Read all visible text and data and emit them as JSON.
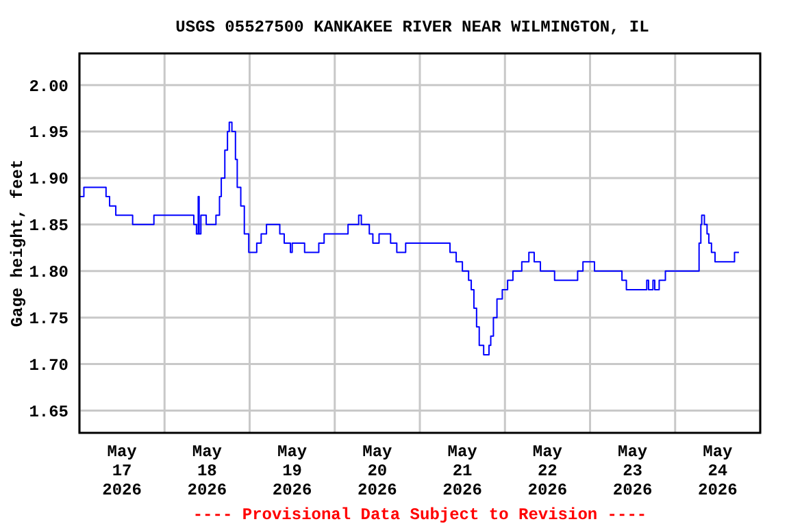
{
  "chart_data": {
    "type": "step",
    "title": "USGS 05527500 KANKAKEE RIVER NEAR WILMINGTON, IL",
    "ylabel": "Gage height, feet",
    "annotations": [
      "---- Provisional Data Subject to Revision ----"
    ],
    "xlim": [
      "2026-05-17T00:00",
      "2026-05-25T00:00"
    ],
    "xticks": [
      {
        "value": "2026-05-17T00:00",
        "label": null
      },
      {
        "value": "2026-05-17T12:00",
        "label": "May\n17\n2026"
      },
      {
        "value": "2026-05-18T00:00",
        "label": null
      },
      {
        "value": "2026-05-18T12:00",
        "label": "May\n18\n2026"
      },
      {
        "value": "2026-05-19T00:00",
        "label": null
      },
      {
        "value": "2026-05-19T12:00",
        "label": "May\n19\n2026"
      },
      {
        "value": "2026-05-20T00:00",
        "label": null
      },
      {
        "value": "2026-05-20T12:00",
        "label": "May\n20\n2026"
      },
      {
        "value": "2026-05-21T00:00",
        "label": null
      },
      {
        "value": "2026-05-21T12:00",
        "label": "May\n21\n2026"
      },
      {
        "value": "2026-05-22T00:00",
        "label": null
      },
      {
        "value": "2026-05-22T12:00",
        "label": "May\n22\n2026"
      },
      {
        "value": "2026-05-23T00:00",
        "label": null
      },
      {
        "value": "2026-05-23T12:00",
        "label": "May\n23\n2026"
      },
      {
        "value": "2026-05-24T00:00",
        "label": null
      },
      {
        "value": "2026-05-24T12:00",
        "label": "May\n24\n2026"
      },
      {
        "value": "2026-05-25T00:00",
        "label": null
      }
    ],
    "ylim": [
      1.626,
      2.034
    ],
    "yticks": [
      {
        "value": 1.65,
        "label": "1.65"
      },
      {
        "value": 1.7,
        "label": "1.70"
      },
      {
        "value": 1.75,
        "label": "1.75"
      },
      {
        "value": 1.8,
        "label": "1.80"
      },
      {
        "value": 1.85,
        "label": "1.85"
      },
      {
        "value": 1.9,
        "label": "1.90"
      },
      {
        "value": 1.95,
        "label": "1.95"
      },
      {
        "value": 2.0,
        "label": "2.00"
      }
    ],
    "grid": true,
    "marker": "none",
    "line_style": "solid",
    "series": [
      {
        "color": "#0000ff",
        "x": [
          "2026-05-17T00:00",
          "2026-05-17T01:15",
          "2026-05-17T07:30",
          "2026-05-17T08:30",
          "2026-05-17T10:15",
          "2026-05-17T15:00",
          "2026-05-17T21:00",
          "2026-05-18T08:15",
          "2026-05-18T09:00",
          "2026-05-18T09:30",
          "2026-05-18T09:45",
          "2026-05-18T10:15",
          "2026-05-18T11:45",
          "2026-05-18T14:30",
          "2026-05-18T15:30",
          "2026-05-18T16:00",
          "2026-05-18T17:00",
          "2026-05-18T17:45",
          "2026-05-18T18:15",
          "2026-05-18T19:00",
          "2026-05-18T20:00",
          "2026-05-18T20:30",
          "2026-05-18T21:30",
          "2026-05-18T22:30",
          "2026-05-18T23:45",
          "2026-05-19T02:00",
          "2026-05-19T03:15",
          "2026-05-19T04:45",
          "2026-05-19T08:30",
          "2026-05-19T09:45",
          "2026-05-19T11:30",
          "2026-05-19T12:00",
          "2026-05-19T15:30",
          "2026-05-19T19:30",
          "2026-05-19T21:00",
          "2026-05-20T03:45",
          "2026-05-20T06:45",
          "2026-05-20T07:30",
          "2026-05-20T09:45",
          "2026-05-20T10:45",
          "2026-05-20T12:30",
          "2026-05-20T15:45",
          "2026-05-20T17:30",
          "2026-05-20T20:00",
          "2026-05-21T08:30",
          "2026-05-21T10:15",
          "2026-05-21T12:00",
          "2026-05-21T13:45",
          "2026-05-21T14:30",
          "2026-05-21T15:15",
          "2026-05-21T16:00",
          "2026-05-21T16:45",
          "2026-05-21T18:00",
          "2026-05-21T19:30",
          "2026-05-21T20:00",
          "2026-05-21T20:45",
          "2026-05-21T21:45",
          "2026-05-21T23:15",
          "2026-05-22T00:45",
          "2026-05-22T02:15",
          "2026-05-22T04:45",
          "2026-05-22T06:45",
          "2026-05-22T08:15",
          "2026-05-22T10:00",
          "2026-05-22T14:00",
          "2026-05-22T20:30",
          "2026-05-22T22:00",
          "2026-05-23T01:15",
          "2026-05-23T09:00",
          "2026-05-23T10:15",
          "2026-05-23T16:00",
          "2026-05-23T16:30",
          "2026-05-23T17:45",
          "2026-05-23T18:15",
          "2026-05-23T19:30",
          "2026-05-23T21:15",
          "2026-05-24T06:45",
          "2026-05-24T07:15",
          "2026-05-24T07:30",
          "2026-05-24T08:15",
          "2026-05-24T09:00",
          "2026-05-24T09:30",
          "2026-05-24T10:15",
          "2026-05-24T11:15",
          "2026-05-24T16:45",
          "2026-05-24T18:00"
        ],
        "values": [
          1.88,
          1.89,
          1.88,
          1.87,
          1.86,
          1.85,
          1.86,
          1.85,
          1.84,
          1.88,
          1.84,
          1.86,
          1.85,
          1.86,
          1.88,
          1.9,
          1.93,
          1.95,
          1.96,
          1.95,
          1.92,
          1.89,
          1.87,
          1.84,
          1.82,
          1.83,
          1.84,
          1.85,
          1.84,
          1.83,
          1.82,
          1.83,
          1.82,
          1.83,
          1.84,
          1.85,
          1.86,
          1.85,
          1.84,
          1.83,
          1.84,
          1.83,
          1.82,
          1.83,
          1.82,
          1.81,
          1.8,
          1.79,
          1.78,
          1.76,
          1.74,
          1.72,
          1.71,
          1.72,
          1.73,
          1.75,
          1.77,
          1.78,
          1.79,
          1.8,
          1.81,
          1.82,
          1.81,
          1.8,
          1.79,
          1.8,
          1.81,
          1.8,
          1.79,
          1.78,
          1.79,
          1.78,
          1.79,
          1.78,
          1.79,
          1.8,
          1.83,
          1.85,
          1.86,
          1.85,
          1.84,
          1.83,
          1.82,
          1.81,
          1.82,
          1.82
        ]
      }
    ]
  }
}
